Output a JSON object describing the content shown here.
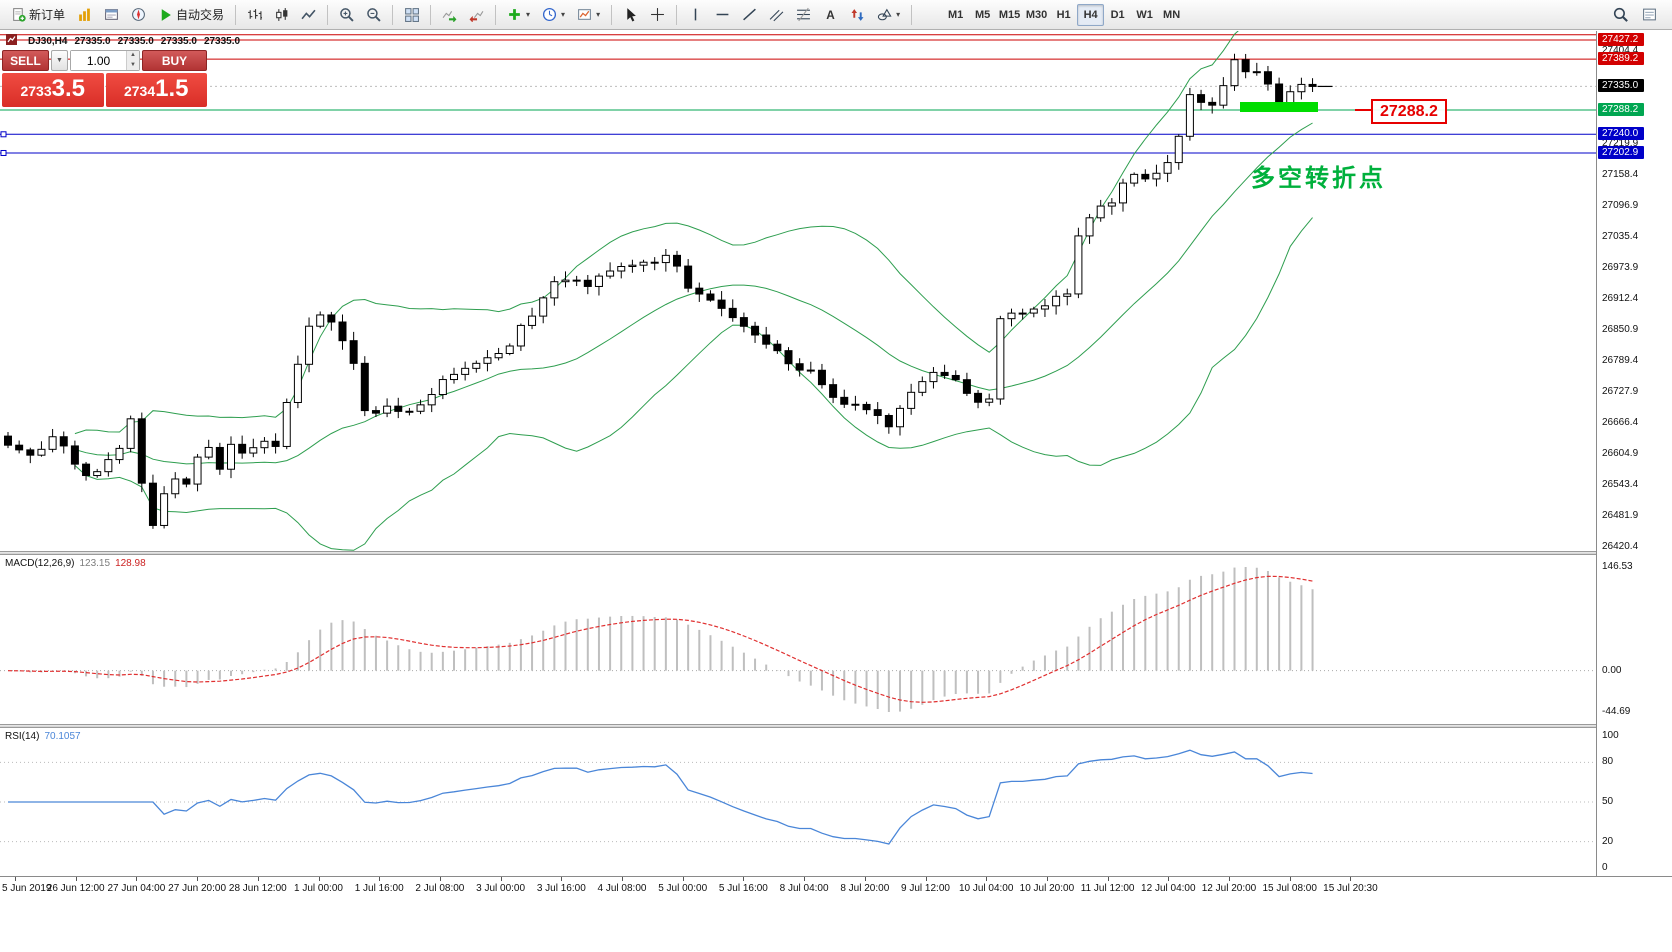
{
  "icons": {
    "caret_down": "▼",
    "caret_up": "▲"
  },
  "toolbar": {
    "caret_glyph": "▾",
    "groups": [
      {
        "items": [
          {
            "name": "new-order-button",
            "label": "新订单",
            "icon": "new-order"
          },
          {
            "name": "market-watch-button",
            "icon": "market-watch"
          },
          {
            "name": "data-window-button",
            "icon": "data-window"
          },
          {
            "name": "navigator-button",
            "icon": "navigator"
          },
          {
            "name": "auto-trading-button",
            "label": "自动交易",
            "icon": "play"
          }
        ]
      },
      {
        "items": [
          {
            "name": "bar-chart-button",
            "icon": "bars"
          },
          {
            "name": "candlestick-button",
            "icon": "candles"
          },
          {
            "name": "line-chart-button",
            "icon": "line"
          }
        ]
      },
      {
        "items": [
          {
            "name": "zoom-in-button",
            "icon": "zoom-in"
          },
          {
            "name": "zoom-out-button",
            "icon": "zoom-out"
          }
        ]
      },
      {
        "items": [
          {
            "name": "tile-windows-button",
            "icon": "tile"
          }
        ]
      },
      {
        "items": [
          {
            "name": "auto-scroll-button",
            "icon": "auto-scroll"
          },
          {
            "name": "chart-shift-button",
            "icon": "chart-shift"
          }
        ]
      },
      {
        "items": [
          {
            "name": "indicators-button",
            "icon": "indicator-plus",
            "caret": true
          },
          {
            "name": "periods-button",
            "icon": "clock",
            "caret": true
          },
          {
            "name": "templates-button",
            "icon": "template",
            "caret": true
          }
        ]
      },
      {
        "items": [
          {
            "name": "cursor-button",
            "icon": "cursor"
          },
          {
            "name": "crosshair-button",
            "icon": "crosshair"
          }
        ]
      },
      {
        "items": [
          {
            "name": "vertical-line-button",
            "icon": "vline"
          },
          {
            "name": "horizontal-line-button",
            "icon": "hline"
          },
          {
            "name": "trendline-button",
            "icon": "trendline"
          },
          {
            "name": "channel-button",
            "icon": "channel"
          },
          {
            "name": "fibonacci-button",
            "icon": "fibo"
          },
          {
            "name": "text-button",
            "icon": "text"
          },
          {
            "name": "arrows-button",
            "icon": "label"
          },
          {
            "name": "shapes-button",
            "icon": "shapes",
            "caret": true
          }
        ]
      }
    ],
    "timeframes": [
      "M1",
      "M5",
      "M15",
      "M30",
      "H1",
      "H4",
      "D1",
      "W1",
      "MN"
    ],
    "active_timeframe": "H4",
    "right_items": [
      {
        "name": "search-button",
        "icon": "search"
      },
      {
        "name": "quotes-window-button",
        "icon": "quotes"
      }
    ]
  },
  "chart_header": {
    "symbol_period": "DJ30,H4",
    "open": "27335.0",
    "high": "27335.0",
    "low": "27335.0",
    "close": "27335.0"
  },
  "trade_panel": {
    "sell_label": "SELL",
    "buy_label": "BUY",
    "volume": "1.00",
    "sell_price_small": "2733",
    "sell_price_big": "3.5",
    "buy_price_small": "2734",
    "buy_price_big": "1.5"
  },
  "price_axis": {
    "plain_ticks": [
      "27404.4",
      "27219.9",
      "27158.4",
      "27096.9",
      "27035.4",
      "26973.9",
      "26912.4",
      "26850.9",
      "26789.4",
      "26727.9",
      "26666.4",
      "26604.9",
      "26543.4",
      "26481.9",
      "26420.4"
    ],
    "boxed": [
      {
        "text": "27427.2",
        "price": 27427.2,
        "bg": "#d20000"
      },
      {
        "text": "27389.2",
        "price": 27389.2,
        "bg": "#d20000"
      },
      {
        "text": "27335.0",
        "price": 27335.0,
        "bg": "#000000"
      },
      {
        "text": "27288.2",
        "price": 27288.2,
        "bg": "#00a651"
      },
      {
        "text": "27240.0",
        "price": 27240.0,
        "bg": "#0000c8"
      },
      {
        "text": "27202.9",
        "price": 27202.9,
        "bg": "#0000c8"
      }
    ]
  },
  "annotations": {
    "callout_price": "27288.2",
    "callout_color": "#e60000",
    "note_text": "多空转折点",
    "note_color": "#00b03c",
    "highlight_color": "#00dd00"
  },
  "macd": {
    "name": "MACD(12,26,9)",
    "value_main": "123.15",
    "value_signal": "128.98",
    "axis_max": "146.53",
    "axis_zero": "0.00",
    "axis_min": "-44.69"
  },
  "rsi": {
    "name": "RSI(14)",
    "value": "70.1057",
    "axis": [
      {
        "label": "100",
        "v": 100
      },
      {
        "label": "80",
        "v": 80
      },
      {
        "label": "50",
        "v": 50
      },
      {
        "label": "20",
        "v": 20
      },
      {
        "label": "0",
        "v": 0
      }
    ],
    "levels": [
      80,
      50,
      20
    ]
  },
  "time_axis": [
    "5 Jun 2019",
    "26 Jun 12:00",
    "27 Jun 04:00",
    "27 Jun 20:00",
    "28 Jun 12:00",
    "1 Jul 00:00",
    "1 Jul 16:00",
    "2 Jul 08:00",
    "3 Jul 00:00",
    "3 Jul 16:00",
    "4 Jul 08:00",
    "5 Jul 00:00",
    "5 Jul 16:00",
    "8 Jul 04:00",
    "8 Jul 20:00",
    "9 Jul 12:00",
    "10 Jul 04:00",
    "10 Jul 20:00",
    "11 Jul 12:00",
    "12 Jul 04:00",
    "12 Jul 20:00",
    "15 Jul 08:00",
    "15 Jul 20:30"
  ],
  "chart_data": {
    "type": "candlestick",
    "symbol": "DJ30",
    "timeframe": "H4",
    "current_price": 27335.0,
    "bid_line": 27335.0,
    "num_candles": 118,
    "ylim": [
      26413,
      27445
    ],
    "overlays": [
      "Bollinger Bands (20,2)"
    ],
    "indicators": [
      "MACD(12,26,9)",
      "RSI(14)"
    ],
    "band_color": "#2e9e4f",
    "close_waypoints": [
      [
        0,
        26620
      ],
      [
        2,
        26600
      ],
      [
        4,
        26645
      ],
      [
        6,
        26585
      ],
      [
        8,
        26560
      ],
      [
        10,
        26625
      ],
      [
        11,
        26665
      ],
      [
        12,
        26545
      ],
      [
        13,
        26465
      ],
      [
        14,
        26525
      ],
      [
        15,
        26560
      ],
      [
        16,
        26545
      ],
      [
        17,
        26590
      ],
      [
        18,
        26615
      ],
      [
        19,
        26585
      ],
      [
        20,
        26620
      ],
      [
        21,
        26605
      ],
      [
        22,
        26618
      ],
      [
        24,
        26625
      ],
      [
        25,
        26705
      ],
      [
        26,
        26785
      ],
      [
        27,
        26862
      ],
      [
        28,
        26892
      ],
      [
        29,
        26868
      ],
      [
        30,
        26820
      ],
      [
        31,
        26778
      ],
      [
        32,
        26702
      ],
      [
        33,
        26682
      ],
      [
        34,
        26702
      ],
      [
        36,
        26680
      ],
      [
        38,
        26722
      ],
      [
        40,
        26762
      ],
      [
        42,
        26782
      ],
      [
        44,
        26802
      ],
      [
        46,
        26852
      ],
      [
        48,
        26922
      ],
      [
        50,
        26962
      ],
      [
        52,
        26950
      ],
      [
        54,
        26962
      ],
      [
        56,
        26982
      ],
      [
        58,
        26992
      ],
      [
        59,
        27002
      ],
      [
        61,
        26942
      ],
      [
        63,
        26912
      ],
      [
        65,
        26882
      ],
      [
        67,
        26842
      ],
      [
        69,
        26802
      ],
      [
        71,
        26782
      ],
      [
        73,
        26742
      ],
      [
        75,
        26702
      ],
      [
        77,
        26682
      ],
      [
        79,
        26662
      ],
      [
        81,
        26722
      ],
      [
        83,
        26772
      ],
      [
        85,
        26742
      ],
      [
        87,
        26712
      ],
      [
        88,
        26716
      ],
      [
        89,
        26868
      ],
      [
        91,
        26882
      ],
      [
        93,
        26892
      ],
      [
        95,
        26922
      ],
      [
        96,
        27042
      ],
      [
        97,
        27072
      ],
      [
        98,
        27092
      ],
      [
        99,
        27112
      ],
      [
        100,
        27142
      ],
      [
        101,
        27152
      ],
      [
        102,
        27162
      ],
      [
        103,
        27152
      ],
      [
        104,
        27172
      ],
      [
        105,
        27232
      ],
      [
        106,
        27318
      ],
      [
        107,
        27308
      ],
      [
        108,
        27302
      ],
      [
        109,
        27332
      ],
      [
        110,
        27392
      ],
      [
        111,
        27372
      ],
      [
        112,
        27358
      ],
      [
        113,
        27342
      ],
      [
        114,
        27302
      ],
      [
        115,
        27322
      ],
      [
        116,
        27342
      ],
      [
        117,
        27335
      ]
    ],
    "hlines": [
      {
        "price": 27437.5,
        "color": "#cc0000"
      },
      {
        "price": 27427.2,
        "color": "#cc0000"
      },
      {
        "price": 27389.2,
        "color": "#cc0000"
      },
      {
        "price": 27288.2,
        "color": "#00a651"
      },
      {
        "price": 27240.0,
        "color": "#0000c8"
      },
      {
        "price": 27202.9,
        "color": "#0000c8"
      }
    ]
  }
}
